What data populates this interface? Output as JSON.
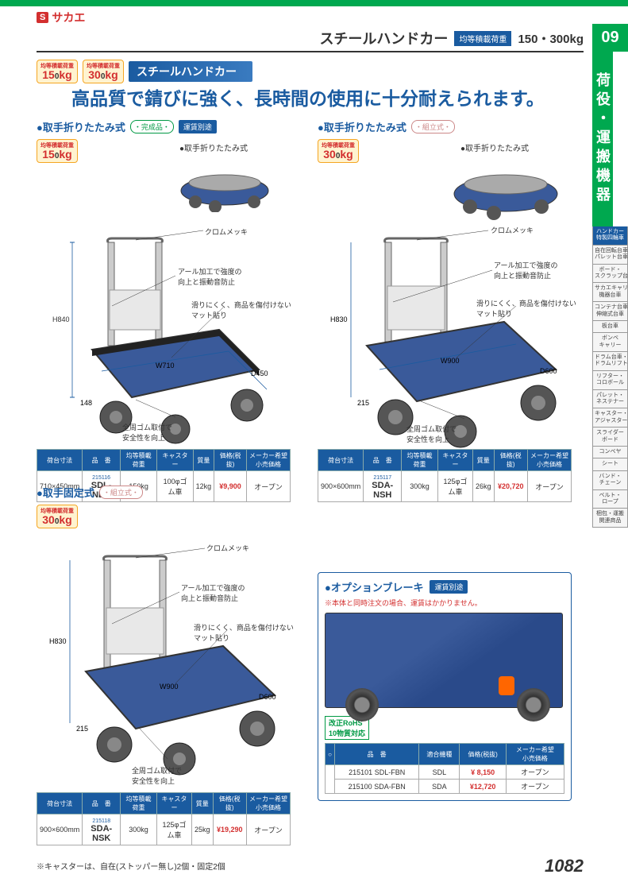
{
  "brand": {
    "icon": "S",
    "name": "サカエ"
  },
  "header": {
    "title": "スチールハンドカー",
    "load_label": "均等積載荷重",
    "load_value": "150・300kg"
  },
  "section": {
    "badges": [
      "均等積載荷重\n150kg",
      "均等積載荷重\n300kg"
    ],
    "title": "スチールハンドカー"
  },
  "tagline": "高品質で錆びに強く、長時間の使用に十分耐えられます。",
  "products": [
    {
      "id": "p1",
      "subtitle": "取手折りたたみ式",
      "tags": [
        "・完成品・",
        "運賃別途"
      ],
      "load_badge": "均等積載荷重\n150kg",
      "folded_label": "●取手折りたたみ式",
      "dims": {
        "h": "H840",
        "w": "W710",
        "d": "D450",
        "base": "148"
      },
      "annots": [
        "クロムメッキ",
        "アール加工で強度の\n向上と振動音防止",
        "滑りにくく、商品を傷付けない\nマット貼り",
        "全周ゴム取付で\n安全性を向上"
      ],
      "spec_headers": [
        "荷台寸法",
        "品　番",
        "均等積載荷重",
        "キャスター",
        "質量",
        "価格(税抜)",
        "メーカー希望\n小売価格"
      ],
      "spec_row": {
        "size": "710×450mm",
        "id": "215116",
        "part": "SDL-NDX",
        "load": "150kg",
        "caster": "100φゴム車",
        "mass": "12kg",
        "price": "¥9,900",
        "msrp": "オープン"
      }
    },
    {
      "id": "p2",
      "subtitle": "取手折りたたみ式",
      "tags": [
        "・組立式・"
      ],
      "load_badge": "均等積載荷重\n300kg",
      "folded_label": "●取手折りたたみ式",
      "dims": {
        "h": "H830",
        "w": "W900",
        "d": "D600",
        "base": "215"
      },
      "annots": [
        "クロムメッキ",
        "アール加工で強度の\n向上と振動音防止",
        "滑りにくく、商品を傷付けない\nマット貼り",
        "全周ゴム取付で\n安全性を向上"
      ],
      "spec_headers": [
        "荷台寸法",
        "品　番",
        "均等積載荷重",
        "キャスター",
        "質量",
        "価格(税抜)",
        "メーカー希望\n小売価格"
      ],
      "spec_row": {
        "size": "900×600mm",
        "id": "215117",
        "part": "SDA-NSH",
        "load": "300kg",
        "caster": "125φゴム車",
        "mass": "26kg",
        "price": "¥20,720",
        "msrp": "オープン"
      }
    },
    {
      "id": "p3",
      "subtitle": "取手固定式",
      "tags": [
        "・組立式・"
      ],
      "load_badge": "均等積載荷重\n300kg",
      "dims": {
        "h": "H830",
        "w": "W900",
        "d": "D600",
        "base": "215"
      },
      "annots": [
        "クロムメッキ",
        "アール加工で強度の\n向上と振動音防止",
        "滑りにくく、商品を傷付けない\nマット貼り",
        "全周ゴム取付で\n安全性を向上"
      ],
      "spec_headers": [
        "荷台寸法",
        "品　番",
        "均等積載荷重",
        "キャスター",
        "質量",
        "価格(税抜)",
        "メーカー希望\n小売価格"
      ],
      "spec_row": {
        "size": "900×600mm",
        "id": "215118",
        "part": "SDA-NSK",
        "load": "300kg",
        "caster": "125φゴム車",
        "mass": "25kg",
        "price": "¥19,290",
        "msrp": "オープン"
      }
    }
  ],
  "option": {
    "title": "●オプションブレーキ",
    "ship_tag": "運賃別途",
    "warning": "※本体と同時注文の場合、運賃はかかりません。",
    "rohs": "改正RoHS\n10物質対応",
    "headers": [
      "品　番",
      "適合機種",
      "価格(税抜)",
      "メーカー希望\n小売価格"
    ],
    "circle_label": "○",
    "rows": [
      {
        "id": "215101",
        "part": "SDL-FBN",
        "compat": "SDL",
        "price": "¥ 8,150",
        "msrp": "オープン"
      },
      {
        "id": "215100",
        "part": "SDA-FBN",
        "compat": "SDA",
        "price": "¥12,720",
        "msrp": "オープン"
      }
    ]
  },
  "sidebar": {
    "num": "09",
    "category": "荷役・運搬機器",
    "nav": [
      "ハンドカー\n特製四輪車",
      "自在回転台車・\nパレット台車",
      "ボード・\nスクラップ台車",
      "サカエキャリー・\n機器台車",
      "コンテナ台車・\n伸縮式台車",
      "板台車",
      "ボンベ\nキャリー",
      "ドラム台車・\nドラムリフト",
      "リフター・\nコロボール",
      "パレット・\nネステナー",
      "キャスター・\nアジャスター",
      "スライダー\nボード",
      "コンベヤ",
      "シート",
      "バンド・\nチェーン",
      "ベルト・\nロープ",
      "梱包・運搬\n関連商品"
    ],
    "nav_active": 0
  },
  "footnote": "※キャスターは、自在(ストッパー無し)2個・固定2個",
  "page_number": "1082",
  "colors": {
    "blue": "#1a5ba0",
    "green": "#00a84f",
    "red": "#d32f2f",
    "cart_blue": "#3a5a9a"
  }
}
